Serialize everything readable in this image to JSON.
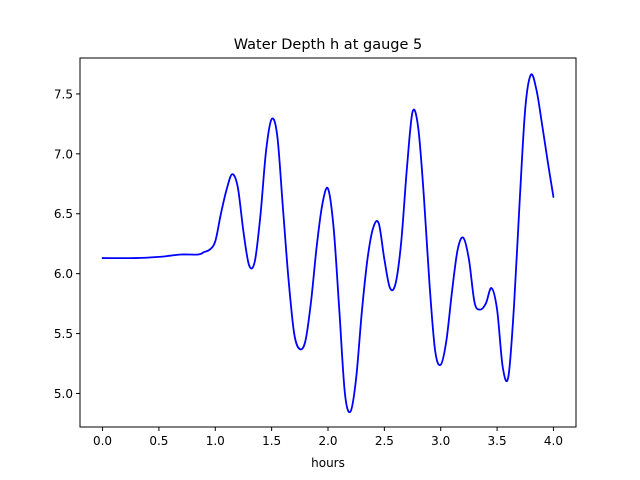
{
  "chart_data": {
    "type": "line",
    "title": "Water Depth h at gauge 5",
    "xlabel": "hours",
    "ylabel": "",
    "xlim": [
      -0.2,
      4.2
    ],
    "ylim": [
      4.72,
      7.8
    ],
    "x_ticks": [
      0.0,
      0.5,
      1.0,
      1.5,
      2.0,
      2.5,
      3.0,
      3.5,
      4.0
    ],
    "x_tick_labels": [
      "0.0",
      "0.5",
      "1.0",
      "1.5",
      "2.0",
      "2.5",
      "3.0",
      "3.5",
      "4.0"
    ],
    "y_ticks": [
      5.0,
      5.5,
      6.0,
      6.5,
      7.0,
      7.5
    ],
    "y_tick_labels": [
      "5.0",
      "5.5",
      "6.0",
      "6.5",
      "7.0",
      "7.5"
    ],
    "grid": false,
    "series": [
      {
        "color": "#0000ff",
        "x": [
          0.0,
          0.3,
          0.5,
          0.6,
          0.7,
          0.85,
          0.9,
          0.95,
          1.0,
          1.05,
          1.1,
          1.15,
          1.2,
          1.25,
          1.3,
          1.35,
          1.4,
          1.45,
          1.5,
          1.55,
          1.6,
          1.65,
          1.7,
          1.75,
          1.8,
          1.85,
          1.9,
          1.95,
          2.0,
          2.05,
          2.1,
          2.15,
          2.2,
          2.25,
          2.3,
          2.35,
          2.4,
          2.45,
          2.5,
          2.55,
          2.6,
          2.65,
          2.7,
          2.75,
          2.8,
          2.85,
          2.9,
          2.95,
          3.0,
          3.05,
          3.1,
          3.15,
          3.2,
          3.25,
          3.3,
          3.35,
          3.4,
          3.45,
          3.5,
          3.55,
          3.6,
          3.65,
          3.7,
          3.75,
          3.8,
          3.85,
          3.9,
          3.95,
          4.0
        ],
        "y": [
          6.13,
          6.13,
          6.14,
          6.15,
          6.16,
          6.16,
          6.18,
          6.2,
          6.27,
          6.5,
          6.7,
          6.83,
          6.72,
          6.35,
          6.07,
          6.1,
          6.48,
          7.02,
          7.29,
          7.15,
          6.55,
          5.95,
          5.5,
          5.37,
          5.44,
          5.77,
          6.23,
          6.58,
          6.71,
          6.38,
          5.7,
          5.0,
          4.85,
          5.13,
          5.68,
          6.12,
          6.38,
          6.42,
          6.12,
          5.88,
          5.92,
          6.27,
          6.88,
          7.35,
          7.22,
          6.65,
          5.92,
          5.36,
          5.24,
          5.44,
          5.85,
          6.2,
          6.3,
          6.12,
          5.76,
          5.7,
          5.75,
          5.88,
          5.7,
          5.22,
          5.14,
          5.73,
          6.6,
          7.38,
          7.66,
          7.53,
          7.24,
          6.93,
          6.64
        ]
      }
    ]
  }
}
